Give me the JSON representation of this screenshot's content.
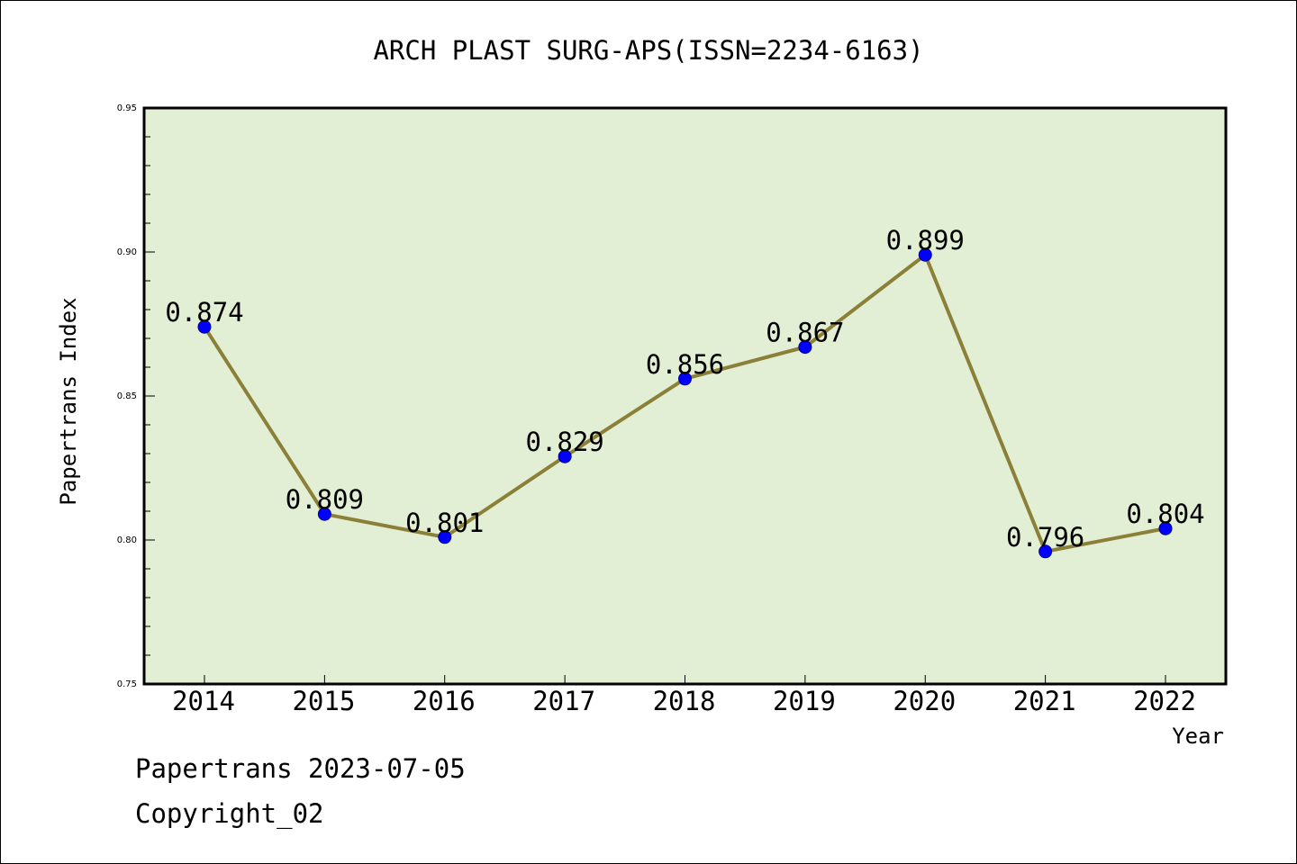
{
  "chart_data": {
    "type": "line",
    "title": "ARCH PLAST SURG-APS(ISSN=2234-6163)",
    "xlabel": "Year",
    "ylabel": "Papertrans Index",
    "categories": [
      "2014",
      "2015",
      "2016",
      "2017",
      "2018",
      "2019",
      "2020",
      "2021",
      "2022"
    ],
    "series": [
      {
        "values": [
          0.874,
          0.809,
          0.801,
          0.829,
          0.856,
          0.867,
          0.899,
          0.796,
          0.804
        ],
        "line_color": "#8b8038",
        "marker_color": "#0000ff"
      }
    ],
    "data_labels": [
      "0.874",
      "0.809",
      "0.801",
      "0.829",
      "0.856",
      "0.867",
      "0.899",
      "0.796",
      "0.804"
    ],
    "ylim": [
      0.75,
      0.95
    ],
    "yticks": [
      "0.75",
      "0.80",
      "0.85",
      "0.90",
      "0.95"
    ],
    "plot_background": "#e2efd5",
    "grid": false,
    "legend": "none"
  },
  "footer": {
    "line1": "Papertrans 2023-07-05",
    "line2": "Copyright_02"
  }
}
